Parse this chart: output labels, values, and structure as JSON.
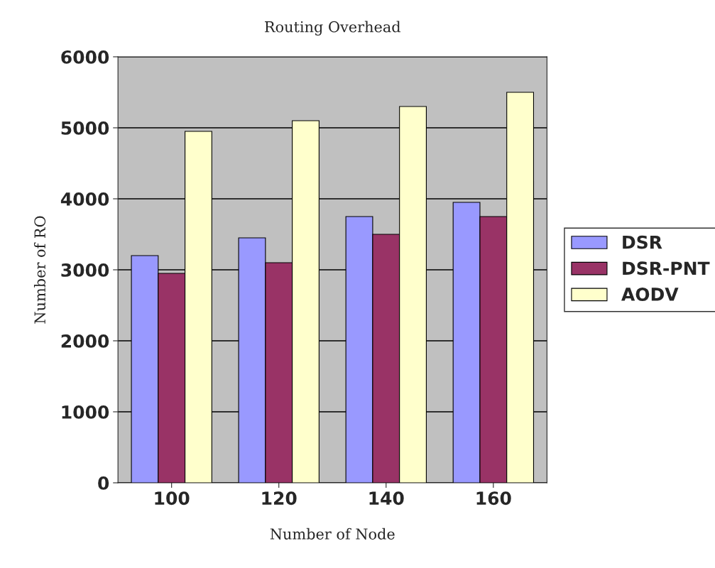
{
  "chart_data": {
    "type": "bar",
    "title": "Routing Overhead",
    "xlabel": "Number of Node",
    "ylabel": "Number of RO",
    "categories": [
      "100",
      "120",
      "140",
      "160"
    ],
    "series": [
      {
        "name": "DSR",
        "color": "#9999ff",
        "values": [
          3200,
          3450,
          3750,
          3950
        ]
      },
      {
        "name": "DSR-PNT",
        "color": "#993366",
        "values": [
          2950,
          3100,
          3500,
          3750
        ]
      },
      {
        "name": "AODV",
        "color": "#ffffcc",
        "values": [
          4950,
          5100,
          5300,
          5500
        ]
      }
    ],
    "ylim": [
      0,
      6000
    ],
    "yticks": [
      0,
      1000,
      2000,
      3000,
      4000,
      5000,
      6000
    ],
    "grid": "y",
    "legend": "right"
  }
}
